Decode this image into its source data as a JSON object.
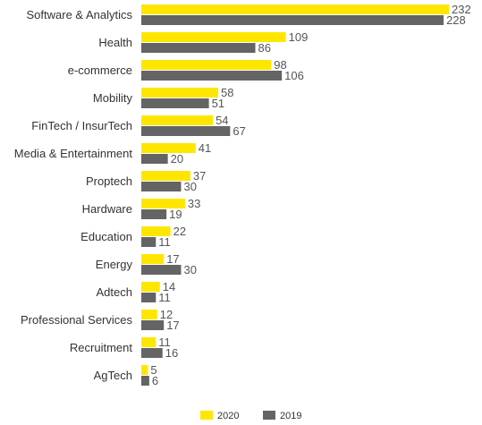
{
  "chart_data": {
    "type": "bar",
    "orientation": "horizontal",
    "categories": [
      "Software & Analytics",
      "Health",
      "e-commerce",
      "Mobility",
      "FinTech / InsurTech",
      "Media & Entertainment",
      "Proptech",
      "Hardware",
      "Education",
      "Energy",
      "Adtech",
      "Professional Services",
      "Recruitment",
      "AgTech"
    ],
    "series": [
      {
        "name": "2020",
        "color": "#ffe600",
        "values": [
          232,
          109,
          98,
          58,
          54,
          41,
          37,
          33,
          22,
          17,
          14,
          12,
          11,
          5
        ]
      },
      {
        "name": "2019",
        "color": "#646464",
        "values": [
          228,
          86,
          106,
          51,
          67,
          20,
          30,
          19,
          11,
          30,
          11,
          17,
          16,
          6
        ]
      }
    ],
    "xlim": [
      0,
      232
    ],
    "grid": false,
    "legend_position": "bottom-center",
    "data_labels": true
  }
}
